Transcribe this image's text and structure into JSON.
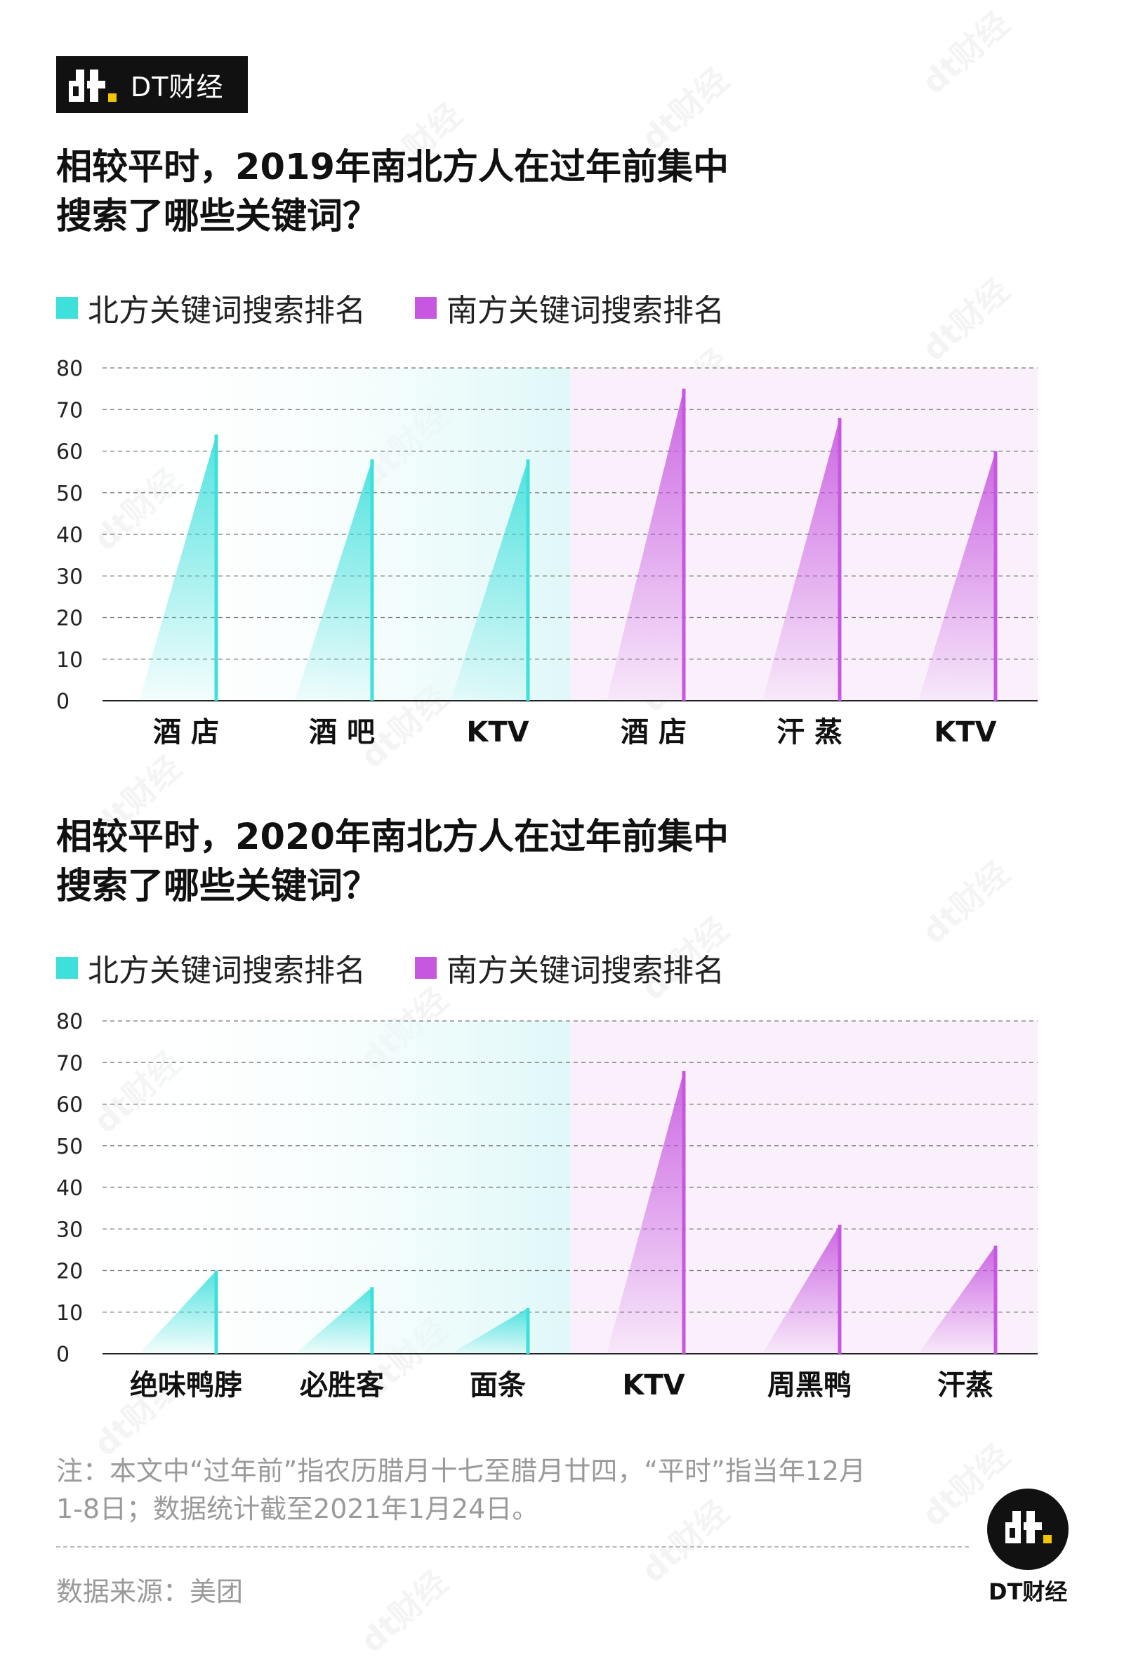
{
  "brand": {
    "name": "DT财经",
    "logo": "dt"
  },
  "watermark": "dt财经",
  "legend": {
    "north_label": "北方关键词搜索排名",
    "south_label": "南方关键词搜索排名",
    "north_color": "#3ee0dc",
    "south_color": "#c757e0"
  },
  "chart_data": [
    {
      "type": "bar",
      "title_lines": [
        "相较平时，2019年南北方人在过年前集中",
        "搜索了哪些关键词？"
      ],
      "categories": [
        "酒 店",
        "酒 吧",
        "KTV",
        "酒 店",
        "汗 蒸",
        "KTV"
      ],
      "groups": [
        "north",
        "north",
        "north",
        "south",
        "south",
        "south"
      ],
      "series": [
        {
          "name": "北方关键词搜索排名",
          "values": [
            64,
            58,
            58,
            null,
            null,
            null
          ]
        },
        {
          "name": "南方关键词搜索排名",
          "values": [
            null,
            null,
            null,
            75,
            68,
            60
          ]
        }
      ],
      "ylim": [
        0,
        80
      ],
      "yticks": [
        0,
        10,
        20,
        30,
        40,
        50,
        60,
        70,
        80
      ],
      "grid": true,
      "legend_position": "top-left"
    },
    {
      "type": "bar",
      "title_lines": [
        "相较平时，2020年南北方人在过年前集中",
        "搜索了哪些关键词？"
      ],
      "categories": [
        "绝味鸭脖",
        "必胜客",
        "面条",
        "KTV",
        "周黑鸭",
        "汗蒸"
      ],
      "groups": [
        "north",
        "north",
        "north",
        "south",
        "south",
        "south"
      ],
      "series": [
        {
          "name": "北方关键词搜索排名",
          "values": [
            20,
            16,
            11,
            null,
            null,
            null
          ]
        },
        {
          "name": "南方关键词搜索排名",
          "values": [
            null,
            null,
            null,
            68,
            31,
            26
          ]
        }
      ],
      "ylim": [
        0,
        80
      ],
      "yticks": [
        0,
        10,
        20,
        30,
        40,
        50,
        60,
        70,
        80
      ],
      "grid": true,
      "legend_position": "top-left"
    }
  ],
  "footnote": {
    "line1": "注：本文中“过年前”指农历腊月十七至腊月廿四，“平时”指当年12月",
    "line2": "1-8日；数据统计截至2021年1月24日。"
  },
  "source": "数据来源：美团"
}
